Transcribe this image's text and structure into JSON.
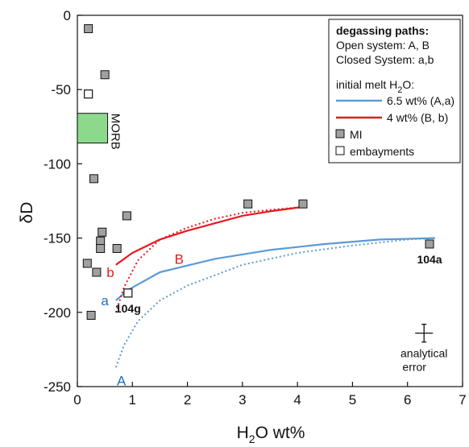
{
  "chart_data": {
    "type": "scatter",
    "xlabel": "H2O wt%",
    "ylabel": "δD",
    "xlim": [
      0,
      7
    ],
    "ylim": [
      -250,
      0
    ],
    "x_ticks": [
      0,
      1,
      2,
      3,
      4,
      5,
      6,
      7
    ],
    "y_ticks": [
      0,
      -50,
      -100,
      -150,
      -200,
      -250
    ],
    "grid": false,
    "legend_position": "top-right",
    "legend": {
      "title": "degassing paths:",
      "line1": "Open system: A, B",
      "line2": "Closed System: a,b",
      "melt_label": "initial melt H",
      "melt_sub": "2",
      "melt_suffix": "O:",
      "entries": [
        {
          "label": "6.5 wt% (A,a)",
          "color": "#5b9bd5",
          "kind": "line"
        },
        {
          "label": "4 wt% (B, b)",
          "color": "#e8191e",
          "kind": "line"
        },
        {
          "label": "MI",
          "kind": "gray-square"
        },
        {
          "label": "embayments",
          "kind": "white-square"
        }
      ]
    },
    "mi": [
      {
        "x": 0.2,
        "y": -9
      },
      {
        "x": 0.5,
        "y": -40
      },
      {
        "x": 0.3,
        "y": -110
      },
      {
        "x": 0.9,
        "y": -135
      },
      {
        "x": 0.45,
        "y": -146
      },
      {
        "x": 0.42,
        "y": -152
      },
      {
        "x": 0.42,
        "y": -157
      },
      {
        "x": 0.72,
        "y": -157
      },
      {
        "x": 0.18,
        "y": -167
      },
      {
        "x": 0.35,
        "y": -173
      },
      {
        "x": 0.25,
        "y": -202
      },
      {
        "x": 3.1,
        "y": -127
      },
      {
        "x": 4.1,
        "y": -127
      },
      {
        "x": 6.4,
        "y": -154
      }
    ],
    "embayments": [
      {
        "x": 0.2,
        "y": -53
      },
      {
        "x": 0.92,
        "y": -187
      }
    ],
    "point_labels": [
      {
        "text": "104a",
        "x": 6.4,
        "y": -154
      },
      {
        "text": "104g",
        "x": 0.92,
        "y": -187
      }
    ],
    "morb": {
      "label": "MORB",
      "x_range": [
        0,
        0.55
      ],
      "y_range": [
        -86,
        -66
      ],
      "color": "#8cd98c"
    },
    "series": [
      {
        "name": "a",
        "color": "#5b9bd5",
        "style": "solid",
        "x": [
          0.7,
          0.92,
          1.5,
          2.5,
          3.5,
          4.5,
          5.5,
          6.5
        ],
        "y": [
          -192,
          -185,
          -173,
          -164,
          -158,
          -154,
          -151,
          -150
        ]
      },
      {
        "name": "A",
        "color": "#5b9bd5",
        "style": "dotted",
        "x": [
          0.7,
          0.85,
          1.1,
          1.5,
          2,
          3,
          4,
          5,
          6,
          6.5
        ],
        "y": [
          -237,
          -222,
          -206,
          -192,
          -182,
          -168,
          -160,
          -155,
          -151,
          -150
        ]
      },
      {
        "name": "b",
        "color": "#e8191e",
        "style": "solid",
        "x": [
          0.7,
          1,
          1.5,
          2,
          2.5,
          3,
          3.5,
          4.1
        ],
        "y": [
          -168,
          -160,
          -151,
          -145,
          -140,
          -135,
          -132,
          -129
        ]
      },
      {
        "name": "B",
        "color": "#e8191e",
        "style": "dotted",
        "x": [
          0.7,
          0.85,
          1.1,
          1.5,
          2,
          2.5,
          3,
          3.5,
          4.1
        ],
        "y": [
          -200,
          -183,
          -165,
          -151,
          -143,
          -137,
          -133,
          -131,
          -129
        ]
      }
    ],
    "path_labels": [
      {
        "text": "a",
        "x": 0.5,
        "y": -192,
        "color": "#1f6fb5"
      },
      {
        "text": "A",
        "x": 0.8,
        "y": -246,
        "color": "#1f6fb5"
      },
      {
        "text": "b",
        "x": 0.6,
        "y": -173,
        "color": "#e8191e"
      },
      {
        "text": "B",
        "x": 1.85,
        "y": -164,
        "color": "#e8191e"
      }
    ],
    "error_bar": {
      "x": 6.3,
      "y": -214,
      "note_line1": "analytical",
      "note_line2": "error"
    }
  }
}
